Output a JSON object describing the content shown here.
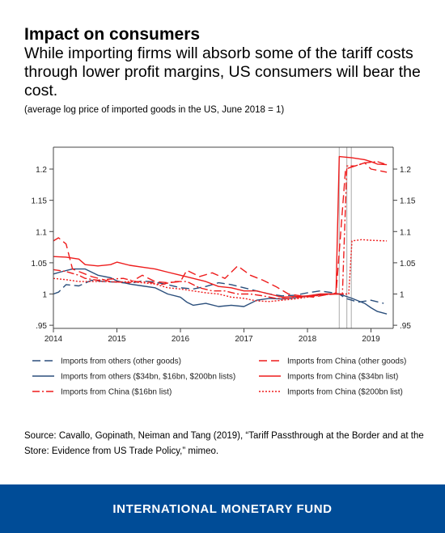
{
  "header": {
    "title": "Impact on consumers",
    "subtitle": "While importing firms will absorb some of the tariff costs through lower profit margins, US consumers will bear the cost.",
    "note": "(average log price of imported goods in the US, June 2018 = 1)"
  },
  "source": "Source: Cavallo, Gopinath, Neiman and Tang (2019), “Tariff Passthrough at the Border and at the Store: Evidence from US Trade Policy,” mimeo.",
  "footer": {
    "org": "INTERNATIONAL MONETARY FUND",
    "bg_color": "#004c97"
  },
  "chart_data": {
    "type": "line",
    "title": "",
    "xlabel": "",
    "ylabel": "",
    "xlim": [
      2014.0,
      2019.35
    ],
    "ylim": [
      0.945,
      1.235
    ],
    "x_ticks": [
      2014,
      2015,
      2016,
      2017,
      2018,
      2019
    ],
    "x_tick_labels": [
      "2014",
      "2015",
      "2016",
      "2017",
      "2018",
      "2019"
    ],
    "y_ticks": [
      0.95,
      1.0,
      1.05,
      1.1,
      1.15,
      1.2
    ],
    "y_tick_labels": [
      ".95",
      "1",
      "1.05",
      "1.1",
      "1.15",
      "1.2"
    ],
    "right_axis_duplicate": true,
    "grid": false,
    "legend_position": "bottom",
    "tariff_event_lines": [
      2018.5,
      2018.62,
      2018.69
    ],
    "colors": {
      "others": "#2b4f7c",
      "china": "#ee1c1c",
      "event_line": "#aaaaaa"
    },
    "series": [
      {
        "name": "Imports from others (other goods)",
        "color": "#2b4f7c",
        "dash": "dashed",
        "points": [
          [
            2014.0,
            1.0
          ],
          [
            2014.08,
            1.003
          ],
          [
            2014.2,
            1.015
          ],
          [
            2014.4,
            1.013
          ],
          [
            2014.6,
            1.022
          ],
          [
            2014.8,
            1.02
          ],
          [
            2015.0,
            1.019
          ],
          [
            2015.2,
            1.017
          ],
          [
            2015.4,
            1.021
          ],
          [
            2015.6,
            1.019
          ],
          [
            2015.8,
            1.015
          ],
          [
            2016.0,
            1.01
          ],
          [
            2016.2,
            1.008
          ],
          [
            2016.4,
            1.012
          ],
          [
            2016.6,
            1.018
          ],
          [
            2016.8,
            1.015
          ],
          [
            2017.0,
            1.01
          ],
          [
            2017.2,
            1.005
          ],
          [
            2017.4,
            1.0
          ],
          [
            2017.6,
            0.997
          ],
          [
            2017.8,
            0.998
          ],
          [
            2018.0,
            1.002
          ],
          [
            2018.2,
            1.005
          ],
          [
            2018.4,
            1.002
          ],
          [
            2018.5,
            1.0
          ],
          [
            2018.6,
            0.993
          ],
          [
            2018.8,
            0.987
          ],
          [
            2019.0,
            0.99
          ],
          [
            2019.2,
            0.985
          ]
        ]
      },
      {
        "name": "Imports from others ($34bn, $16bn, $200bn lists)",
        "color": "#2b4f7c",
        "dash": "solid",
        "points": [
          [
            2014.0,
            1.032
          ],
          [
            2014.1,
            1.035
          ],
          [
            2014.3,
            1.04
          ],
          [
            2014.5,
            1.04
          ],
          [
            2014.7,
            1.03
          ],
          [
            2014.9,
            1.026
          ],
          [
            2015.0,
            1.021
          ],
          [
            2015.2,
            1.016
          ],
          [
            2015.4,
            1.013
          ],
          [
            2015.6,
            1.01
          ],
          [
            2015.8,
            1.0
          ],
          [
            2016.0,
            0.995
          ],
          [
            2016.1,
            0.987
          ],
          [
            2016.2,
            0.982
          ],
          [
            2016.4,
            0.985
          ],
          [
            2016.6,
            0.98
          ],
          [
            2016.8,
            0.982
          ],
          [
            2017.0,
            0.98
          ],
          [
            2017.2,
            0.99
          ],
          [
            2017.4,
            0.993
          ],
          [
            2017.6,
            0.992
          ],
          [
            2017.8,
            0.994
          ],
          [
            2018.0,
            0.997
          ],
          [
            2018.3,
            1.0
          ],
          [
            2018.5,
            1.0
          ],
          [
            2018.7,
            0.993
          ],
          [
            2018.9,
            0.985
          ],
          [
            2019.0,
            0.978
          ],
          [
            2019.1,
            0.972
          ],
          [
            2019.25,
            0.968
          ]
        ]
      },
      {
        "name": "Imports from China (other goods)",
        "color": "#ee1c1c",
        "dash": "dashed",
        "points": [
          [
            2014.0,
            1.085
          ],
          [
            2014.08,
            1.09
          ],
          [
            2014.2,
            1.08
          ],
          [
            2014.3,
            1.04
          ],
          [
            2014.6,
            1.028
          ],
          [
            2014.9,
            1.02
          ],
          [
            2015.2,
            1.018
          ],
          [
            2015.4,
            1.03
          ],
          [
            2015.6,
            1.02
          ],
          [
            2015.8,
            1.018
          ],
          [
            2016.0,
            1.02
          ],
          [
            2016.1,
            1.038
          ],
          [
            2016.3,
            1.028
          ],
          [
            2016.5,
            1.034
          ],
          [
            2016.7,
            1.025
          ],
          [
            2016.9,
            1.045
          ],
          [
            2017.1,
            1.03
          ],
          [
            2017.3,
            1.022
          ],
          [
            2017.5,
            1.012
          ],
          [
            2017.7,
            1.0
          ],
          [
            2017.9,
            0.997
          ],
          [
            2018.1,
            0.995
          ],
          [
            2018.3,
            0.999
          ],
          [
            2018.45,
            1.0
          ],
          [
            2018.6,
            1.2
          ],
          [
            2018.75,
            1.205
          ],
          [
            2018.9,
            1.21
          ],
          [
            2019.0,
            1.2
          ],
          [
            2019.25,
            1.195
          ]
        ]
      },
      {
        "name": "Imports from China ($34bn list)",
        "color": "#ee1c1c",
        "dash": "solid",
        "points": [
          [
            2014.0,
            1.06
          ],
          [
            2014.2,
            1.059
          ],
          [
            2014.4,
            1.056
          ],
          [
            2014.5,
            1.047
          ],
          [
            2014.7,
            1.045
          ],
          [
            2014.9,
            1.047
          ],
          [
            2015.0,
            1.051
          ],
          [
            2015.2,
            1.046
          ],
          [
            2015.4,
            1.043
          ],
          [
            2015.6,
            1.04
          ],
          [
            2015.8,
            1.035
          ],
          [
            2016.0,
            1.03
          ],
          [
            2016.2,
            1.025
          ],
          [
            2016.4,
            1.02
          ],
          [
            2016.6,
            1.012
          ],
          [
            2016.8,
            1.01
          ],
          [
            2017.0,
            1.005
          ],
          [
            2017.2,
            1.005
          ],
          [
            2017.4,
            1.0
          ],
          [
            2017.6,
            0.995
          ],
          [
            2017.8,
            0.996
          ],
          [
            2018.0,
            0.997
          ],
          [
            2018.2,
            1.0
          ],
          [
            2018.4,
            1.0
          ],
          [
            2018.45,
            1.002
          ],
          [
            2018.5,
            1.22
          ],
          [
            2018.7,
            1.218
          ],
          [
            2018.9,
            1.215
          ],
          [
            2019.0,
            1.212
          ],
          [
            2019.1,
            1.208
          ],
          [
            2019.25,
            1.207
          ]
        ]
      },
      {
        "name": "Imports from China ($16bn list)",
        "color": "#ee1c1c",
        "dash": "dashdot",
        "points": [
          [
            2014.0,
            1.039
          ],
          [
            2014.2,
            1.036
          ],
          [
            2014.4,
            1.03
          ],
          [
            2014.5,
            1.025
          ],
          [
            2014.7,
            1.022
          ],
          [
            2014.9,
            1.024
          ],
          [
            2015.1,
            1.025
          ],
          [
            2015.3,
            1.02
          ],
          [
            2015.5,
            1.019
          ],
          [
            2015.7,
            1.015
          ],
          [
            2015.9,
            1.02
          ],
          [
            2016.1,
            1.02
          ],
          [
            2016.3,
            1.01
          ],
          [
            2016.5,
            1.005
          ],
          [
            2016.7,
            1.005
          ],
          [
            2016.9,
            1.0
          ],
          [
            2017.1,
            1.0
          ],
          [
            2017.3,
            0.997
          ],
          [
            2017.5,
            0.993
          ],
          [
            2017.7,
            0.993
          ],
          [
            2017.9,
            0.995
          ],
          [
            2018.1,
            0.997
          ],
          [
            2018.3,
            1.0
          ],
          [
            2018.55,
            1.0
          ],
          [
            2018.62,
            1.205
          ],
          [
            2018.75,
            1.205
          ],
          [
            2018.9,
            1.21
          ],
          [
            2019.1,
            1.212
          ],
          [
            2019.25,
            1.207
          ]
        ]
      },
      {
        "name": "Imports from China ($200bn list)",
        "color": "#ee1c1c",
        "dash": "dotted",
        "points": [
          [
            2014.0,
            1.025
          ],
          [
            2014.2,
            1.023
          ],
          [
            2014.4,
            1.02
          ],
          [
            2014.6,
            1.02
          ],
          [
            2014.8,
            1.02
          ],
          [
            2015.0,
            1.019
          ],
          [
            2015.2,
            1.02
          ],
          [
            2015.4,
            1.018
          ],
          [
            2015.6,
            1.016
          ],
          [
            2015.8,
            1.01
          ],
          [
            2016.0,
            1.008
          ],
          [
            2016.2,
            1.005
          ],
          [
            2016.4,
            1.002
          ],
          [
            2016.6,
            1.0
          ],
          [
            2016.8,
            0.995
          ],
          [
            2017.0,
            0.993
          ],
          [
            2017.2,
            0.989
          ],
          [
            2017.4,
            0.988
          ],
          [
            2017.6,
            0.99
          ],
          [
            2017.8,
            0.992
          ],
          [
            2018.0,
            0.995
          ],
          [
            2018.2,
            0.998
          ],
          [
            2018.4,
            1.0
          ],
          [
            2018.65,
            1.0
          ],
          [
            2018.7,
            1.085
          ],
          [
            2018.85,
            1.087
          ],
          [
            2019.0,
            1.086
          ],
          [
            2019.25,
            1.085
          ]
        ]
      }
    ]
  }
}
